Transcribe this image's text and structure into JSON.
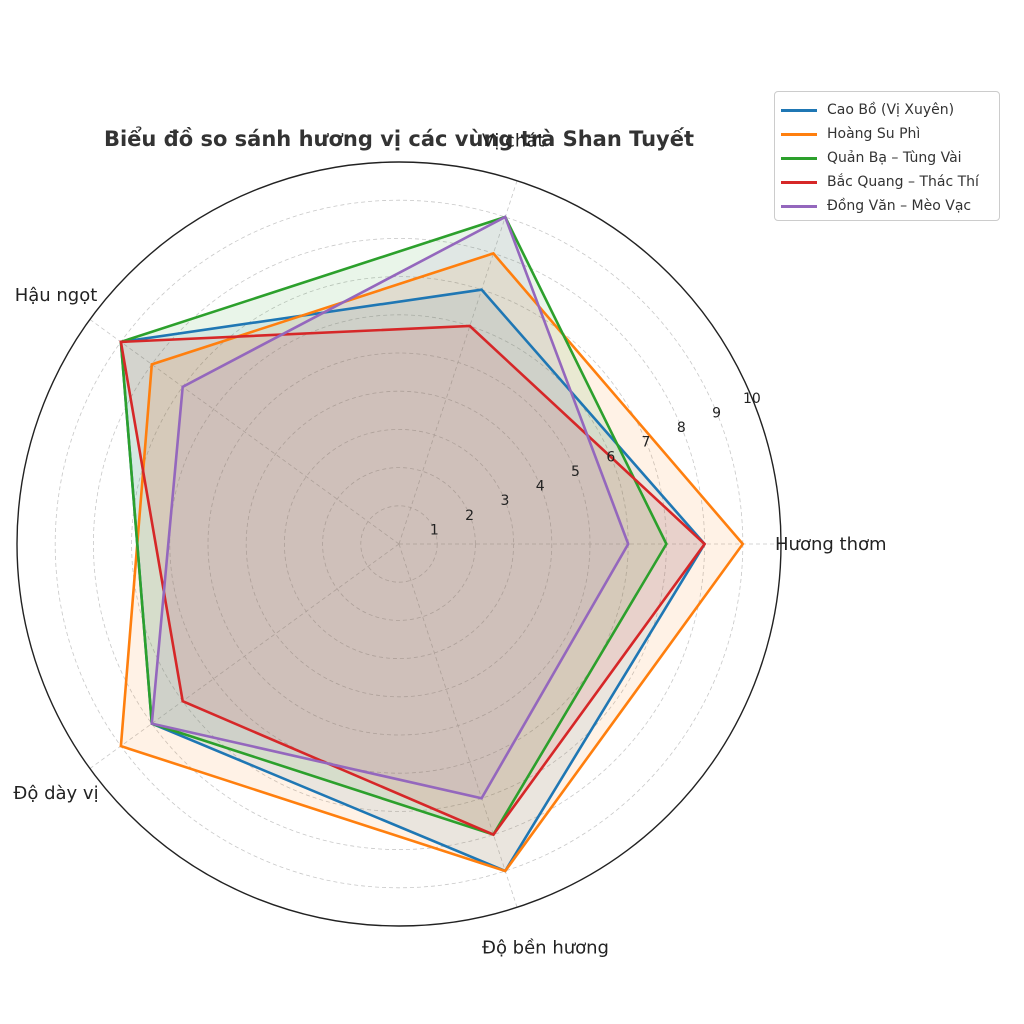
{
  "chart_data": {
    "type": "radar",
    "title": "Biểu đồ so sánh hương vị các vùng trà Shan Tuyết",
    "axes": [
      "Hương thơm",
      "Vị chát",
      "Hậu ngọt",
      "Độ dày vị",
      "Độ bền hương"
    ],
    "rlim": [
      0,
      10
    ],
    "r_ticks": [
      "1",
      "2",
      "3",
      "4",
      "5",
      "6",
      "7",
      "8",
      "9",
      "10"
    ],
    "grid": true,
    "legend_position": "top-right",
    "series": [
      {
        "name": "Cao Bồ (Vị Xuyên)",
        "color": "#1f77b4",
        "values": [
          8,
          7,
          9,
          8,
          9
        ]
      },
      {
        "name": "Hoàng Su Phì",
        "color": "#ff7f0e",
        "values": [
          9,
          8,
          8,
          9,
          9
        ]
      },
      {
        "name": "Quản Bạ – Tùng Vài",
        "color": "#2ca02c",
        "values": [
          7,
          9,
          9,
          8,
          8
        ]
      },
      {
        "name": "Bắc Quang – Thác Thí",
        "color": "#d62728",
        "values": [
          8,
          6,
          9,
          7,
          8
        ]
      },
      {
        "name": "Đồng Văn – Mèo Vạc",
        "color": "#9467bd",
        "values": [
          6,
          9,
          7,
          8,
          7
        ]
      }
    ]
  }
}
